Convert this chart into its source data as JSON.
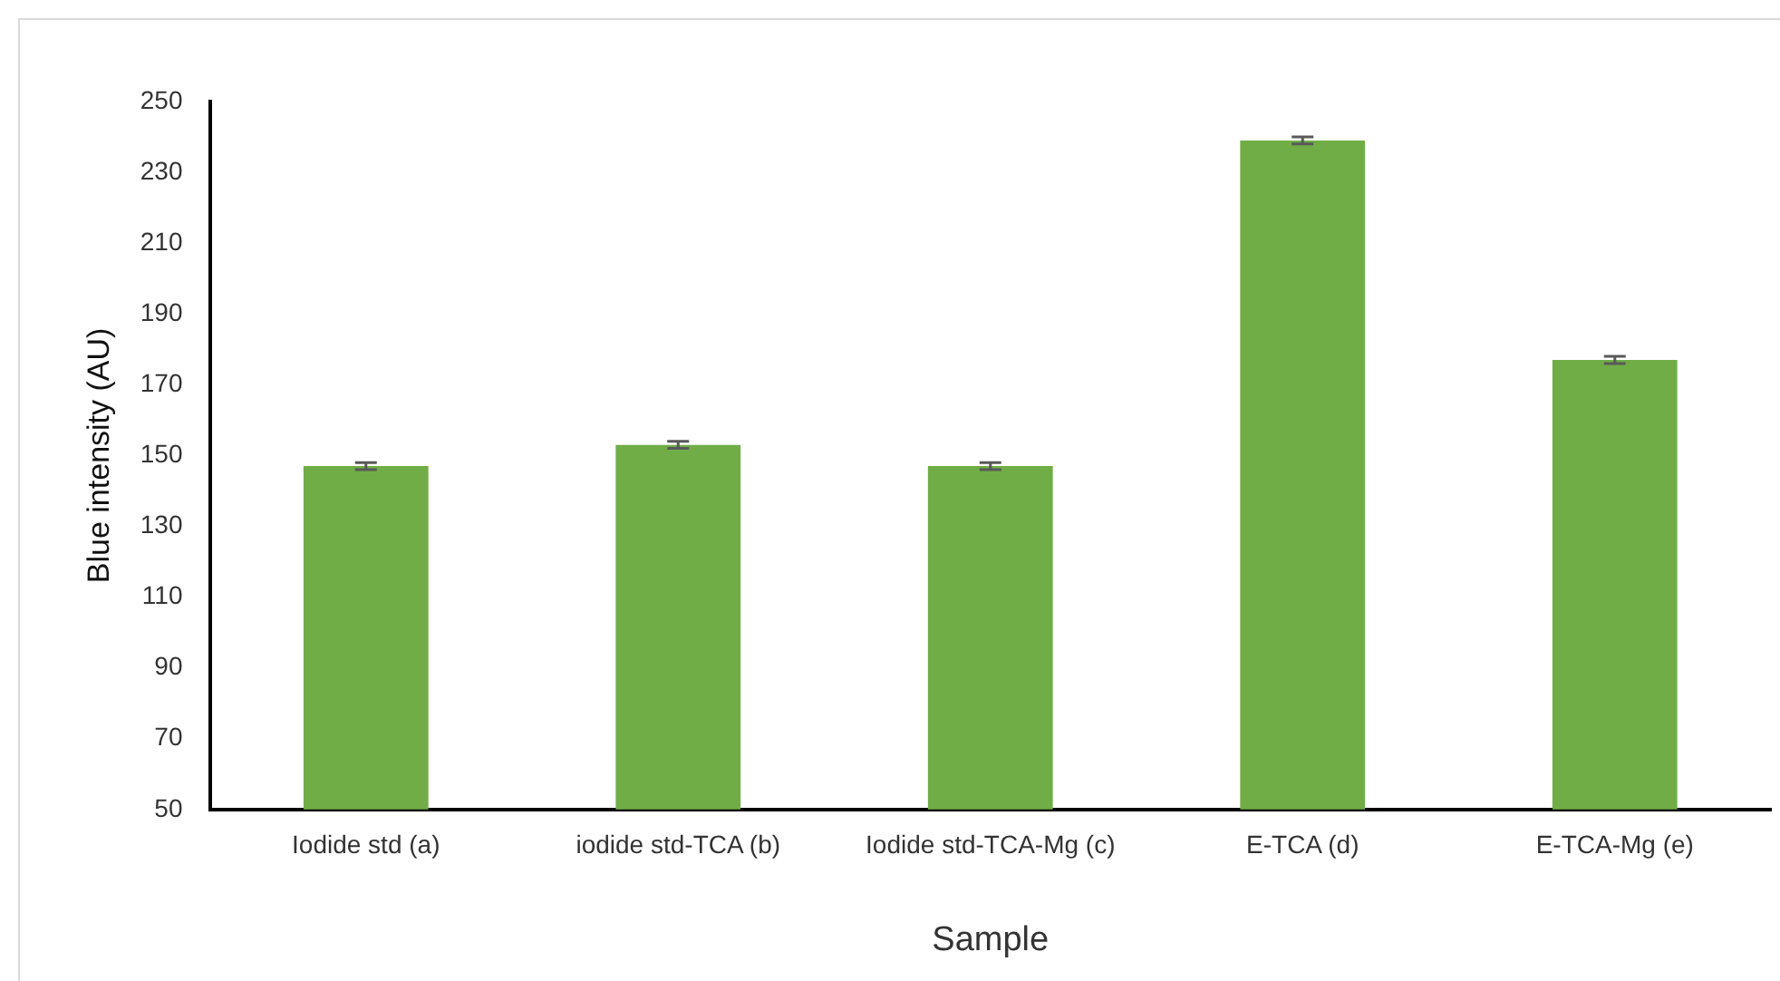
{
  "chart_data": {
    "type": "bar",
    "xlabel": "Sample",
    "ylabel": "Blue intensity (AU)",
    "categories": [
      "Iodide std (a)",
      "iodide std-TCA (b)",
      "Iodide std-TCA-Mg (c)",
      "E-TCA (d)",
      "E-TCA-Mg (e)"
    ],
    "values": [
      147,
      153,
      147,
      239,
      177
    ],
    "errors": [
      1,
      1,
      1,
      1,
      1
    ],
    "color": "#70ad47",
    "ylim": [
      50,
      250
    ],
    "yticks": [
      50,
      70,
      90,
      110,
      130,
      150,
      170,
      190,
      210,
      230,
      250
    ],
    "grid": false,
    "legend": false
  }
}
